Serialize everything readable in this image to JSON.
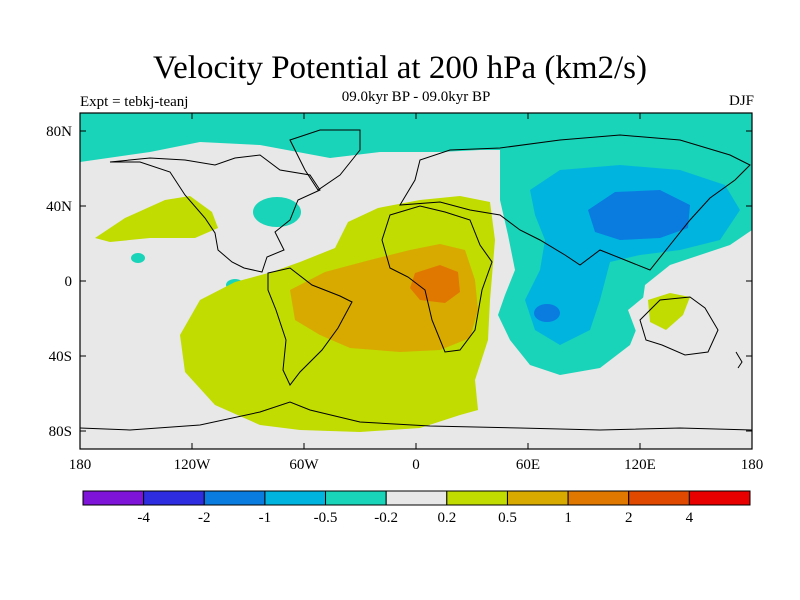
{
  "title": "Velocity Potential at 200 hPa (km2/s)",
  "subtitle": "09.0kyr BP - 09.0kyr BP",
  "left_label": "Expt = tebkj-teanj",
  "right_label": "DJF",
  "map": {
    "lon_ticks": [
      "180",
      "120W",
      "60W",
      "0",
      "60E",
      "120E",
      "180"
    ],
    "lat_ticks": [
      "80N",
      "40N",
      "0",
      "40S",
      "80S"
    ],
    "land_colors": {
      "neutral": "#e8e8e8",
      "neg_02": "#19d4b8",
      "neg_05": "#00b4e0",
      "neg_1": "#0a7ce0",
      "pos_02": "#c0dc00",
      "pos_05": "#d8aa00",
      "pos_1": "#e07800"
    }
  },
  "colorbar": {
    "colors": [
      "#7f14d9",
      "#2e2ee0",
      "#0a7ce0",
      "#00b4e0",
      "#19d4b8",
      "#e8e8e8",
      "#c0dc00",
      "#d8aa00",
      "#e07800",
      "#e04a00",
      "#e80000"
    ],
    "labels": [
      "-4",
      "-2",
      "-1",
      "-0.5",
      "-0.2",
      "0.2",
      "0.5",
      "1",
      "2",
      "4"
    ]
  }
}
